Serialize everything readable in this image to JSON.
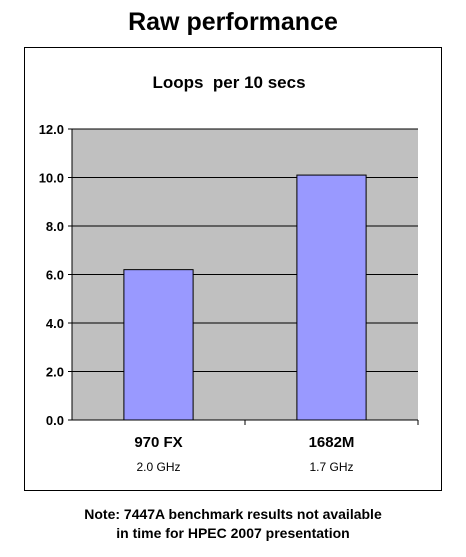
{
  "slide": {
    "title": "Raw performance",
    "note_lines": [
      "Note: 7447A benchmark results not available",
      "in time for HPEC 2007 presentation"
    ]
  },
  "colors": {
    "plot_background": "#c0c0c0",
    "bar_fill": "#9999ff",
    "bar_stroke": "#000000",
    "gridline": "#000000",
    "frame": "#000000"
  },
  "chart_data": {
    "type": "bar",
    "title": "Loops  per 10 secs",
    "categories": [
      "970 FX",
      "1682M"
    ],
    "sublabels": [
      "2.0 GHz",
      "1.7 GHz"
    ],
    "values": [
      6.2,
      10.1
    ],
    "ylim": [
      0,
      12
    ],
    "yticks": [
      "0.0",
      "2.0",
      "4.0",
      "6.0",
      "8.0",
      "10.0",
      "12.0"
    ],
    "xlabel": "",
    "ylabel": "",
    "grid": true,
    "legend": "none"
  }
}
